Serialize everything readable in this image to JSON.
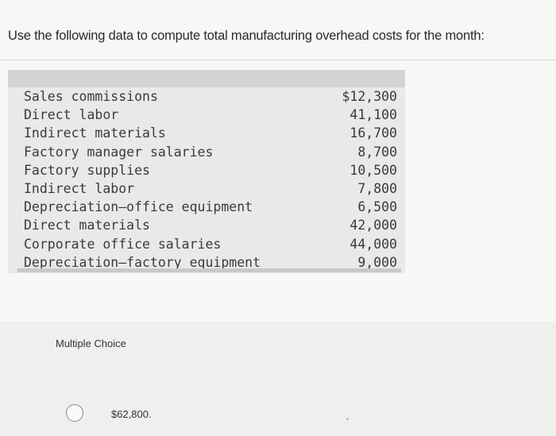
{
  "question": "Use the following data to compute total manufacturing overhead costs for the month:",
  "table": {
    "rows": [
      {
        "label": "Sales commissions",
        "value": "$12,300"
      },
      {
        "label": "Direct labor",
        "value": "41,100"
      },
      {
        "label": "Indirect materials",
        "value": "16,700"
      },
      {
        "label": "Factory manager salaries",
        "value": "8,700"
      },
      {
        "label": "Factory supplies",
        "value": "10,500"
      },
      {
        "label": "Indirect labor",
        "value": "7,800"
      },
      {
        "label": "Depreciation–office equipment",
        "value": "6,500"
      },
      {
        "label": "Direct materials",
        "value": "42,000"
      },
      {
        "label": "Corporate office salaries",
        "value": "44,000"
      },
      {
        "label": "Depreciation–factory equipment",
        "value": "9,000"
      }
    ]
  },
  "multiple_choice": {
    "heading": "Multiple Choice",
    "options": [
      {
        "text": "$62,800."
      }
    ]
  }
}
